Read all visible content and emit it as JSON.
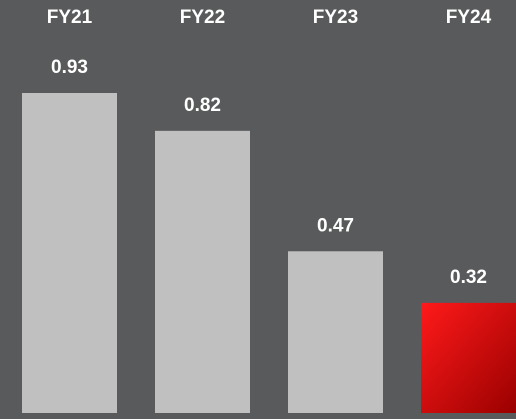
{
  "chart_data": {
    "type": "bar",
    "categories": [
      "FY21",
      "FY22",
      "FY23",
      "FY24"
    ],
    "values": [
      0.93,
      0.82,
      0.47,
      0.32
    ],
    "colors": [
      "#c0c0c0",
      "#c0c0c0",
      "#c0c0c0",
      "#e8101a"
    ]
  }
}
